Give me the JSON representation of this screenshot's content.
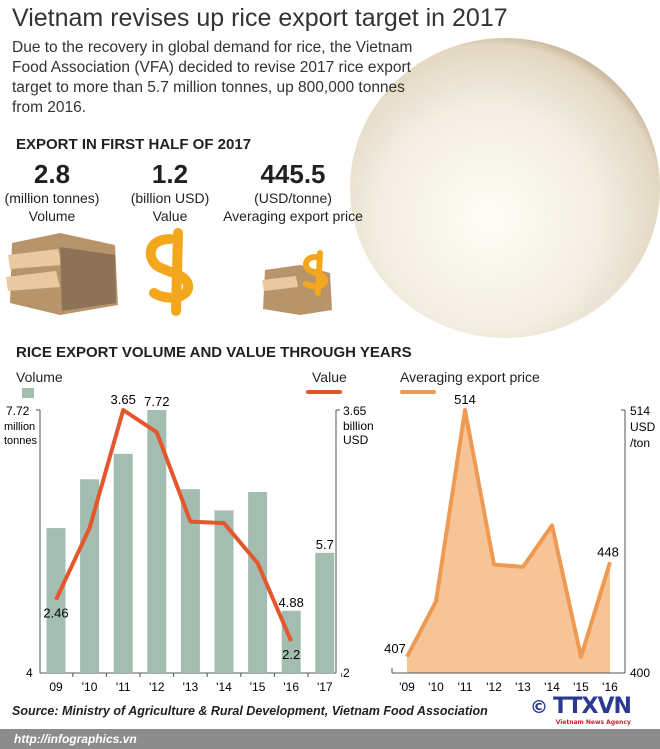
{
  "title": "Vietnam revises up rice export target in 2017",
  "intro": "Due to the recovery in global demand for rice, the Vietnam Food Association (VFA) decided to revise 2017 rice export target to more than 5.7 million tonnes, up 800,000 tonnes from 2016.",
  "export_heading": "EXPORT IN FIRST HALF OF 2017",
  "stats": [
    {
      "value": "2.8",
      "unit": "(million tonnes)",
      "label": "Volume",
      "icon": "rice-sacks-icon"
    },
    {
      "value": "1.2",
      "unit": "(billion USD)",
      "label": "Value",
      "icon": "dollar-icon"
    },
    {
      "value": "445.5",
      "unit": "(USD/tonne)",
      "label": "Averaging export price",
      "icon": "sacks-dollar-icon"
    }
  ],
  "chart_heading": "RICE EXPORT VOLUME AND VALUE THROUGH YEARS",
  "colors": {
    "volume": "#a3bdb1",
    "value": "#e4572e",
    "price_line": "#ee9a52",
    "price_fill": "#f7c497"
  },
  "chart_data": [
    {
      "type": "bar",
      "title": "Volume",
      "legend": "Volume",
      "categories": [
        "09",
        "'10",
        "'11",
        "'12",
        "'13",
        "'14",
        "'15",
        "'16",
        "'17"
      ],
      "values": [
        6.05,
        6.74,
        7.1,
        7.72,
        6.6,
        6.3,
        6.56,
        4.88,
        5.7
      ],
      "labels": {
        "3": "7.72",
        "7": "4.88",
        "8": "5.7"
      },
      "ylim": [
        4,
        7.72
      ],
      "ytick_top": "7.72",
      "ytick_top_unit": [
        "million",
        "tonnes"
      ],
      "ytick_bottom": "4"
    },
    {
      "type": "line",
      "title": "Value",
      "legend": "Value",
      "categories": [
        "09",
        "'10",
        "'11",
        "'12",
        "'13",
        "'14",
        "'15",
        "'16"
      ],
      "values": [
        2.46,
        2.91,
        3.65,
        3.51,
        2.95,
        2.94,
        2.69,
        2.2
      ],
      "labels": {
        "0": "2.46",
        "2": "3.65",
        "7": "2.2"
      },
      "ylim": [
        2,
        3.65
      ],
      "ytick_top": "3.65",
      "ytick_top_unit": [
        "billion",
        "USD"
      ],
      "ytick_bottom": "2"
    },
    {
      "type": "area",
      "title": "Averaging export price",
      "legend": "Averaging export price",
      "categories": [
        "'09",
        "'10",
        "'11",
        "'12",
        "'13",
        "'14",
        "'15",
        "'16"
      ],
      "values": [
        407,
        431,
        514,
        447,
        446,
        464,
        407,
        448
      ],
      "labels": {
        "0": "407",
        "2": "514",
        "7": "448"
      },
      "ylim": [
        400,
        514
      ],
      "ytick_top": "514",
      "ytick_top_unit": [
        "USD",
        "/ton"
      ],
      "ytick_bottom": "400"
    }
  ],
  "source": "Source: Ministry of Agriculture & Rural Development, Vietnam Food Association",
  "url": "http://infographics.vn",
  "logo": {
    "copyright": "©",
    "name": "TTXVN",
    "sub": "Vietnam News Agency"
  }
}
